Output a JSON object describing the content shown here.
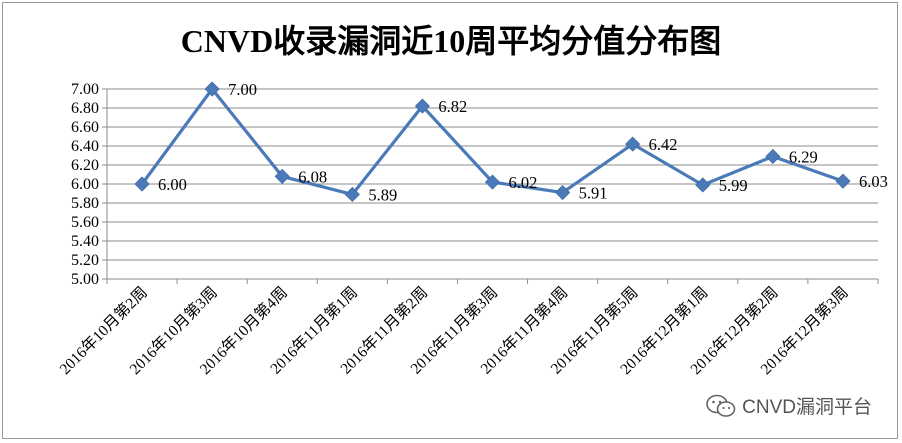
{
  "chart_data": {
    "type": "line",
    "title": "CNVD收录漏洞近10周平均分值分布图",
    "categories": [
      "2016年10月第2周",
      "2016年10月第3周",
      "2016年10月第4周",
      "2016年11月第1周",
      "2016年11月第2周",
      "2016年11月第3周",
      "2016年11月第4周",
      "2016年11月第5周",
      "2016年12月第1周",
      "2016年12月第2周",
      "2016年12月第3周"
    ],
    "series": [
      {
        "values": [
          6.0,
          7.0,
          6.08,
          5.89,
          6.82,
          6.02,
          5.91,
          6.42,
          5.99,
          6.29,
          6.03
        ]
      }
    ],
    "data_labels": [
      "6.00",
      "7.00",
      "6.08",
      "5.89",
      "6.82",
      "6.02",
      "5.91",
      "6.42",
      "5.99",
      "6.29",
      "6.03"
    ],
    "y_ticks": [
      "5.00",
      "5.20",
      "5.40",
      "5.60",
      "5.80",
      "6.00",
      "6.20",
      "6.40",
      "6.60",
      "6.80",
      "7.00"
    ],
    "ylim": [
      5.0,
      7.0
    ],
    "grid": true,
    "legend": "none",
    "line_color": "#4a7ab8",
    "marker": "diamond"
  },
  "watermark": {
    "text": "CNVD漏洞平台",
    "icon": "wechat-icon"
  }
}
